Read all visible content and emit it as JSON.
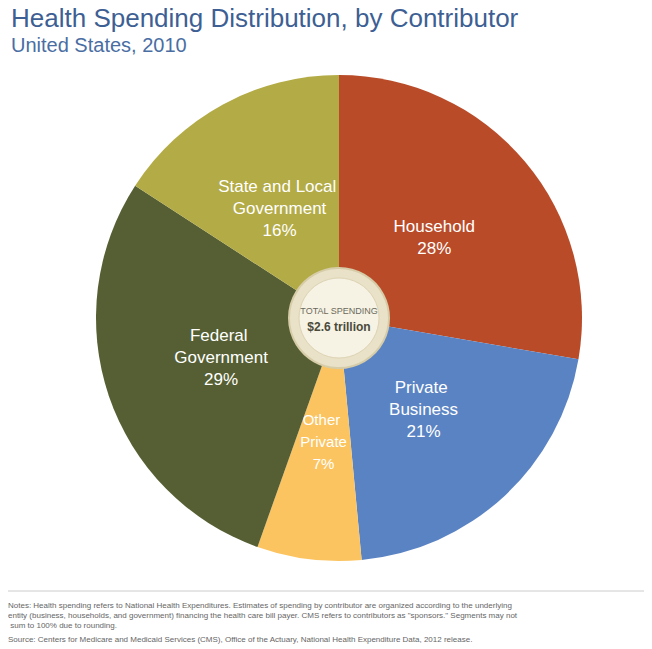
{
  "chart_data": {
    "type": "pie",
    "title": "Health Spending Distribution, by Contributor",
    "subtitle": "United States, 2010",
    "categories": [
      "Household",
      "Private Business",
      "Other Private",
      "Federal Government",
      "State and Local Government"
    ],
    "values": [
      28,
      21,
      7,
      29,
      16
    ],
    "value_labels": [
      "28%",
      "21%",
      "7%",
      "29%",
      "16%"
    ],
    "colors": [
      "#b94b29",
      "#5a83c3",
      "#fbc460",
      "#565f33",
      "#b3ab45"
    ],
    "data_labels": true,
    "center_text": [
      "TOTAL SPENDING",
      "$2.6 trillion"
    ],
    "notes": "Notes: Health spending refers to National Health Expenditures. Estimates of spending by contributor are organized according to the underlying entity (business, households, and government) financing the health care bill payer. CMS refers to contributors as \"sponsors.\" Segments may not sum to 100% due to rounding.",
    "source": "Source: Centers for Medicare and Medicaid Services (CMS), Office of the Actuary, National Health Expenditure Data, 2012 release."
  }
}
